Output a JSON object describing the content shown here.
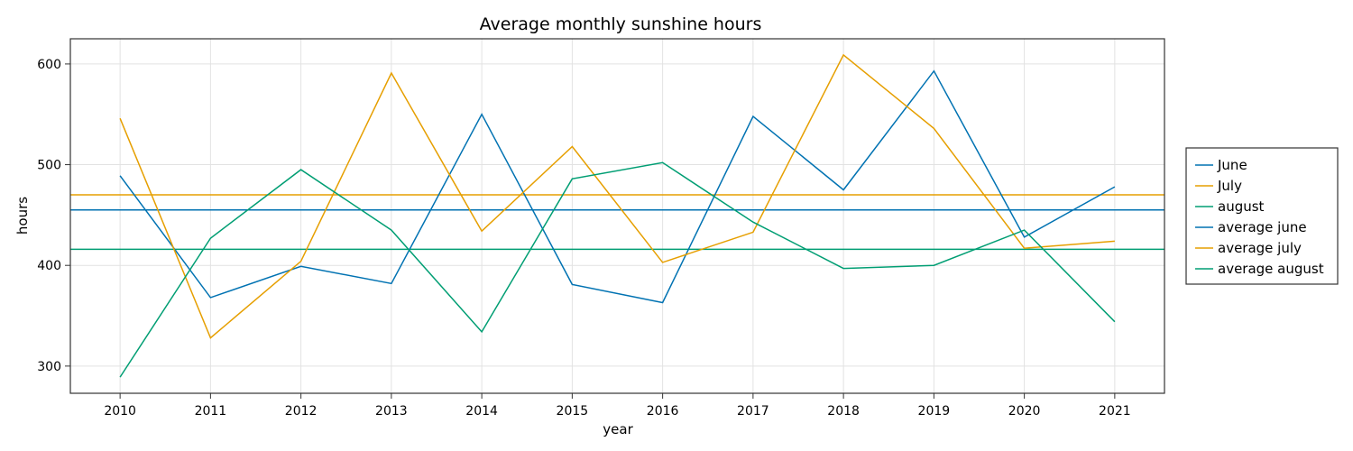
{
  "chart_data": {
    "type": "line",
    "title": "Average monthly sunshine hours",
    "xlabel": "year",
    "ylabel": "hours",
    "x": [
      2010,
      2011,
      2012,
      2013,
      2014,
      2015,
      2016,
      2017,
      2018,
      2019,
      2020,
      2021
    ],
    "x_tick_labels": [
      "2010",
      "2011",
      "2012",
      "2013",
      "2014",
      "2015",
      "2016",
      "2017",
      "2018",
      "2019",
      "2020",
      "2021"
    ],
    "xlim": [
      2009.45,
      2021.55
    ],
    "ylim": [
      273,
      625
    ],
    "y_ticks": [
      300,
      400,
      500,
      600
    ],
    "y_tick_labels": [
      "300",
      "400",
      "500",
      "600"
    ],
    "grid": true,
    "legend_position": "right",
    "series": [
      {
        "name": "June",
        "color": "#0072b2",
        "kind": "line",
        "values": [
          489,
          368,
          399,
          382,
          550,
          381,
          363,
          548,
          475,
          593,
          428,
          478
        ]
      },
      {
        "name": "July",
        "color": "#e69f00",
        "kind": "line",
        "values": [
          546,
          328,
          404,
          591,
          434,
          518,
          403,
          433,
          609,
          536,
          417,
          424
        ]
      },
      {
        "name": "august",
        "color": "#009e73",
        "kind": "line",
        "values": [
          289,
          427,
          495,
          435,
          334,
          486,
          502,
          443,
          397,
          400,
          435,
          344
        ]
      },
      {
        "name": "average june",
        "color": "#0072b2",
        "kind": "hline",
        "value": 455
      },
      {
        "name": "average july",
        "color": "#e69f00",
        "kind": "hline",
        "value": 470
      },
      {
        "name": "average august",
        "color": "#009e73",
        "kind": "hline",
        "value": 416
      }
    ]
  }
}
